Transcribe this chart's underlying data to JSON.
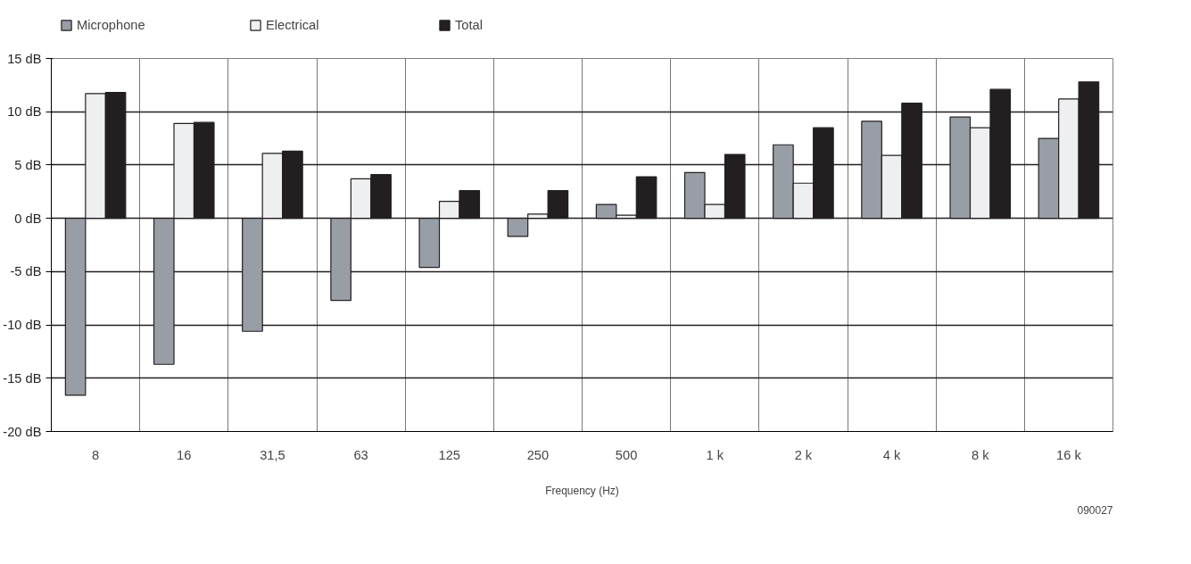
{
  "chart_data": {
    "type": "bar",
    "xlabel": "Frequency (Hz)",
    "categories": [
      "8",
      "16",
      "31,5",
      "63",
      "125",
      "250",
      "500",
      "1 k",
      "2 k",
      "4 k",
      "8 k",
      "16 k"
    ],
    "series": [
      {
        "name": "Microphone",
        "color": "#989ea5",
        "values": [
          -16.6,
          -13.7,
          -10.6,
          -7.7,
          -4.6,
          -1.7,
          1.3,
          4.3,
          6.9,
          9.1,
          9.5,
          7.5
        ]
      },
      {
        "name": "Electrical",
        "color": "#eeeff0",
        "values": [
          11.7,
          8.9,
          6.1,
          3.7,
          1.6,
          0.4,
          0.3,
          1.3,
          3.3,
          5.9,
          8.5,
          11.2
        ]
      },
      {
        "name": "Total",
        "color": "#231f20",
        "values": [
          11.8,
          9.0,
          6.3,
          4.1,
          2.6,
          2.6,
          3.9,
          6.0,
          8.5,
          10.8,
          12.1,
          12.8
        ]
      }
    ],
    "ylim": [
      -20,
      15
    ],
    "yticks": [
      {
        "value": -20,
        "label": "-20 dB"
      },
      {
        "value": -15,
        "label": "-15 dB"
      },
      {
        "value": -10,
        "label": "-10 dB"
      },
      {
        "value": -5,
        "label": "-5 dB"
      },
      {
        "value": 0,
        "label": "0 dB"
      },
      {
        "value": 5,
        "label": "5 dB"
      },
      {
        "value": 10,
        "label": "10 dB"
      },
      {
        "value": 15,
        "label": "15 dB"
      }
    ],
    "grid": true,
    "legend": "top left",
    "annotations": [
      "090027"
    ]
  }
}
